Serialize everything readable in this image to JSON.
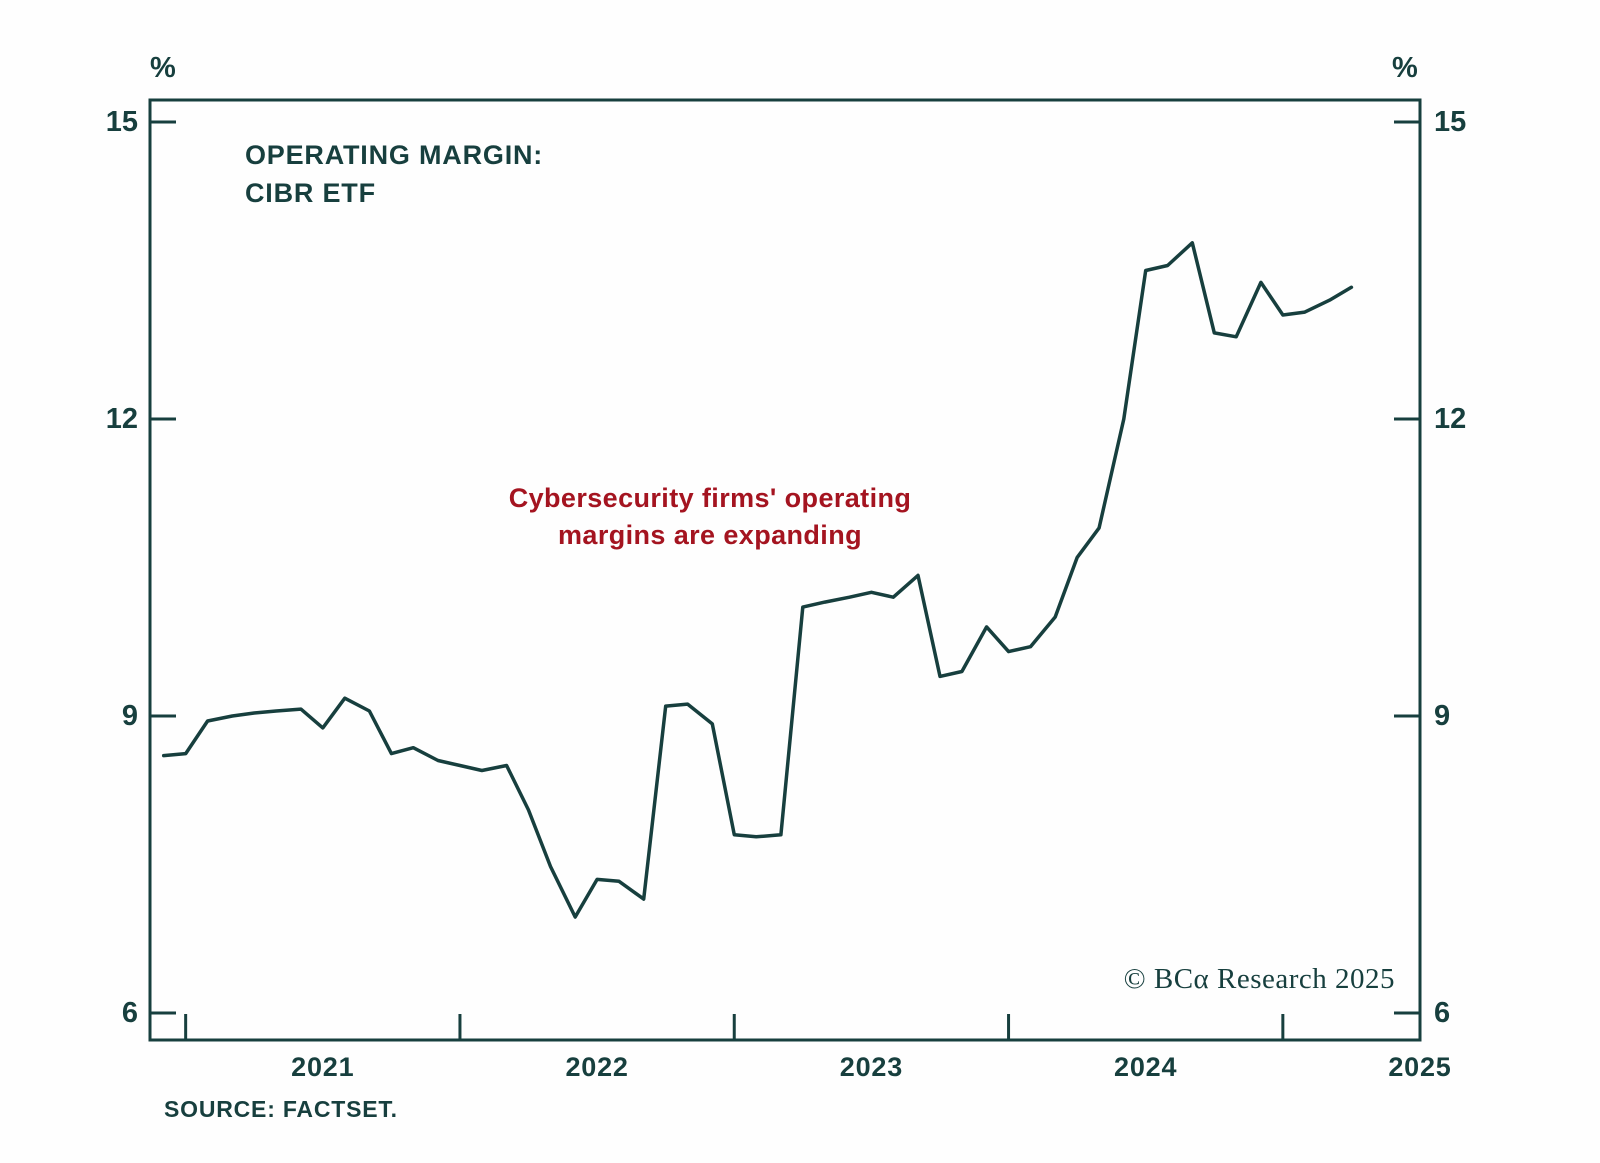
{
  "page": {
    "background": "#fefefe"
  },
  "chart_data": {
    "type": "line",
    "title_line1": "OPERATING MARGIN:",
    "title_line2": "CIBR ETF",
    "annotation_line1": "Cybersecurity firms' operating",
    "annotation_line2": "margins are expanding",
    "annotation_color": "#a41420",
    "axis_color": "#173f3e",
    "line_color": "#173f3e",
    "unit_left": "%",
    "unit_right": "%",
    "y_domain": [
      6,
      15
    ],
    "y_ticks": [
      15,
      12,
      9,
      6
    ],
    "x_domain": [
      2020.37,
      2025.0
    ],
    "x_tick_positions": [
      2020.5,
      2021.5,
      2022.5,
      2023.5,
      2024.5
    ],
    "x_labels": [
      {
        "text": "2021",
        "pos": 2021.0
      },
      {
        "text": "2022",
        "pos": 2022.0
      },
      {
        "text": "2023",
        "pos": 2023.0
      },
      {
        "text": "2024",
        "pos": 2024.0
      },
      {
        "text": "2025",
        "pos": 2025.0
      }
    ],
    "grid": false,
    "legend": "none",
    "series": [
      {
        "name": "CIBR ETF operating margin (%)",
        "x": [
          2020.42,
          2020.5,
          2020.58,
          2020.67,
          2020.75,
          2020.83,
          2020.92,
          2021.0,
          2021.08,
          2021.17,
          2021.25,
          2021.33,
          2021.42,
          2021.5,
          2021.58,
          2021.67,
          2021.75,
          2021.83,
          2021.92,
          2022.0,
          2022.08,
          2022.17,
          2022.25,
          2022.33,
          2022.42,
          2022.5,
          2022.58,
          2022.67,
          2022.75,
          2022.83,
          2022.92,
          2023.0,
          2023.08,
          2023.17,
          2023.25,
          2023.33,
          2023.42,
          2023.5,
          2023.58,
          2023.67,
          2023.75,
          2023.83,
          2023.92,
          2024.0,
          2024.08,
          2024.17,
          2024.25,
          2024.33,
          2024.42,
          2024.5,
          2024.58,
          2024.67,
          2024.75
        ],
        "values": [
          8.6,
          8.62,
          8.95,
          9.0,
          9.03,
          9.05,
          9.07,
          8.88,
          9.18,
          9.05,
          8.62,
          8.68,
          8.55,
          8.5,
          8.45,
          8.5,
          8.05,
          7.48,
          6.97,
          7.35,
          7.33,
          7.15,
          9.1,
          9.12,
          8.92,
          7.8,
          7.78,
          7.8,
          10.1,
          10.15,
          10.2,
          10.25,
          10.2,
          10.42,
          9.4,
          9.45,
          9.9,
          9.65,
          9.7,
          10.0,
          10.6,
          10.9,
          12.0,
          13.5,
          13.55,
          13.78,
          12.87,
          12.83,
          13.38,
          13.05,
          13.08,
          13.2,
          13.33
        ]
      }
    ],
    "copyright": "© BCα Research 2025",
    "source": "SOURCE: FACTSET."
  }
}
